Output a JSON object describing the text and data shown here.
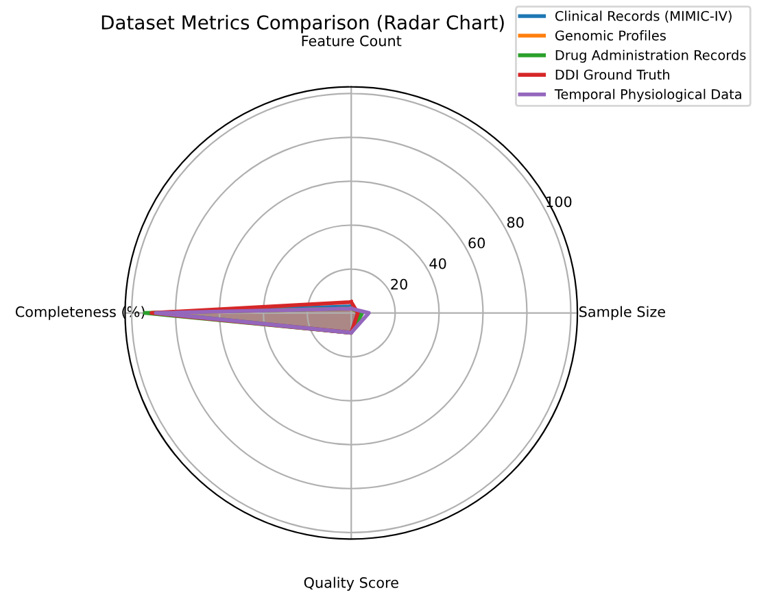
{
  "chart_data": {
    "type": "radar",
    "title": "Dataset Metrics Comparison (Radar Chart)",
    "categories": [
      "Feature Count",
      "Sample Size",
      "Quality Score",
      "Completeness (%)"
    ],
    "series": [
      {
        "name": "Clinical Records (MIMIC-IV)",
        "color": "#1f77b4",
        "values": [
          3,
          3,
          9,
          88
        ]
      },
      {
        "name": "Genomic Profiles",
        "color": "#ff7f0e",
        "values": [
          2,
          4,
          9,
          90
        ]
      },
      {
        "name": "Drug Administration Records",
        "color": "#2ca02c",
        "values": [
          2,
          5,
          9,
          94
        ]
      },
      {
        "name": "DDI Ground Truth",
        "color": "#d62728",
        "values": [
          5,
          3,
          9,
          91
        ]
      },
      {
        "name": "Temporal Physiological Data",
        "color": "#9467bd",
        "values": [
          2,
          8,
          9,
          89
        ]
      }
    ],
    "ylim": [
      0,
      103
    ],
    "yticks": [
      20,
      40,
      60,
      80,
      100
    ],
    "grid": true,
    "legend": "top right"
  }
}
